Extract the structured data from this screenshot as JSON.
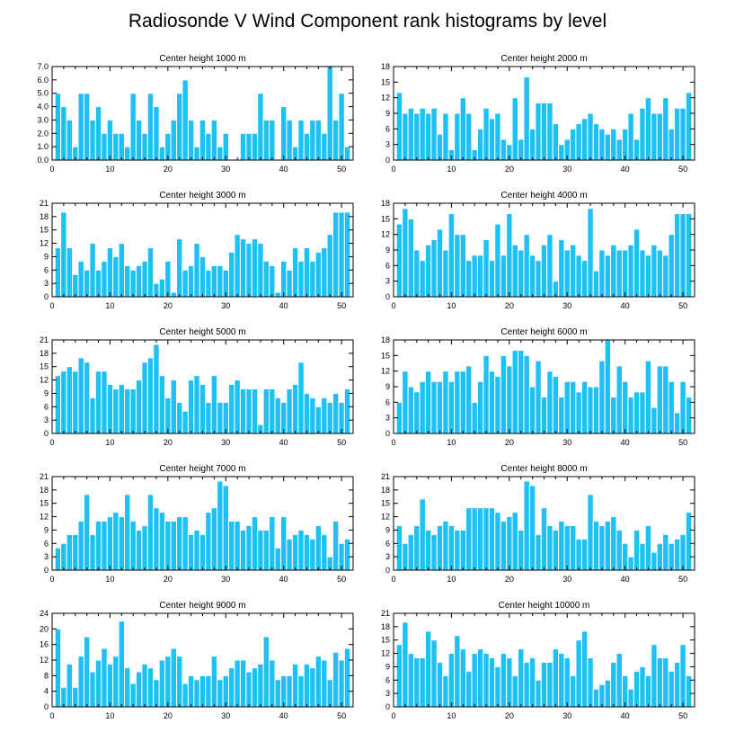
{
  "figure": {
    "title": "Radiosonde V Wind Component rank histograms by level"
  },
  "colors": {
    "bar": "#1ec1f4",
    "bar_edge": "#ffffff",
    "axis": "#000000"
  },
  "chart_data": [
    {
      "type": "bar",
      "title": "Center height 1000 m",
      "xlim": [
        0,
        52
      ],
      "ylim": [
        0,
        7
      ],
      "xticks": [
        0,
        10,
        20,
        30,
        40,
        50
      ],
      "yticks": [
        "0.0",
        "1.0",
        "2.0",
        "3.0",
        "4.0",
        "5.0",
        "6.0",
        "7.0"
      ],
      "x": [
        1,
        2,
        3,
        4,
        5,
        6,
        7,
        8,
        9,
        10,
        11,
        12,
        13,
        14,
        15,
        16,
        17,
        18,
        19,
        20,
        21,
        22,
        23,
        24,
        25,
        26,
        27,
        28,
        29,
        30,
        31,
        32,
        33,
        34,
        35,
        36,
        37,
        38,
        39,
        40,
        41,
        42,
        43,
        44,
        45,
        46,
        47,
        48,
        49,
        50,
        51
      ],
      "values": [
        5,
        4,
        3,
        1,
        5,
        5,
        3,
        4,
        2,
        3,
        2,
        2,
        1,
        5,
        3,
        2,
        5,
        4,
        1,
        2,
        3,
        5,
        6,
        3,
        1,
        3,
        2,
        3,
        1,
        2,
        0,
        0,
        2,
        2,
        2,
        5,
        3,
        3,
        0,
        4,
        3,
        1,
        3,
        2,
        3,
        3,
        2,
        7,
        3,
        5,
        1
      ]
    },
    {
      "type": "bar",
      "title": "Center height 2000 m",
      "xlim": [
        0,
        52
      ],
      "ylim": [
        0,
        18
      ],
      "xticks": [
        0,
        10,
        20,
        30,
        40,
        50
      ],
      "yticks": [
        "0",
        "3",
        "6",
        "9",
        "12",
        "15",
        "18"
      ],
      "x": [
        1,
        2,
        3,
        4,
        5,
        6,
        7,
        8,
        9,
        10,
        11,
        12,
        13,
        14,
        15,
        16,
        17,
        18,
        19,
        20,
        21,
        22,
        23,
        24,
        25,
        26,
        27,
        28,
        29,
        30,
        31,
        32,
        33,
        34,
        35,
        36,
        37,
        38,
        39,
        40,
        41,
        42,
        43,
        44,
        45,
        46,
        47,
        48,
        49,
        50,
        51
      ],
      "values": [
        13,
        9,
        10,
        9,
        10,
        9,
        10,
        5,
        9,
        2,
        9,
        12,
        9,
        2,
        6,
        10,
        8,
        9,
        4,
        3,
        12,
        4,
        16,
        6,
        11,
        11,
        11,
        7,
        3,
        4,
        6,
        7,
        8,
        9,
        7,
        6,
        5,
        6,
        4,
        6,
        9,
        4,
        10,
        12,
        9,
        9,
        12,
        6,
        10,
        10,
        13
      ]
    },
    {
      "type": "bar",
      "title": "Center height 3000 m",
      "xlim": [
        0,
        52
      ],
      "ylim": [
        0,
        21
      ],
      "xticks": [
        0,
        10,
        20,
        30,
        40,
        50
      ],
      "yticks": [
        "0",
        "3",
        "6",
        "9",
        "12",
        "15",
        "18",
        "21"
      ],
      "x": [
        1,
        2,
        3,
        4,
        5,
        6,
        7,
        8,
        9,
        10,
        11,
        12,
        13,
        14,
        15,
        16,
        17,
        18,
        19,
        20,
        21,
        22,
        23,
        24,
        25,
        26,
        27,
        28,
        29,
        30,
        31,
        32,
        33,
        34,
        35,
        36,
        37,
        38,
        39,
        40,
        41,
        42,
        43,
        44,
        45,
        46,
        47,
        48,
        49,
        50,
        51
      ],
      "values": [
        11,
        19,
        11,
        5,
        8,
        6,
        12,
        6,
        8,
        11,
        9,
        12,
        7,
        6,
        7,
        8,
        11,
        3,
        4,
        8,
        1,
        13,
        6,
        7,
        12,
        9,
        6,
        7,
        7,
        6,
        10,
        14,
        13,
        12,
        13,
        12,
        8,
        7,
        1,
        8,
        6,
        11,
        8,
        11,
        8,
        10,
        11,
        14,
        19,
        19,
        19
      ]
    },
    {
      "type": "bar",
      "title": "Center height 4000 m",
      "xlim": [
        0,
        52
      ],
      "ylim": [
        0,
        18
      ],
      "xticks": [
        0,
        10,
        20,
        30,
        40,
        50
      ],
      "yticks": [
        "0",
        "3",
        "6",
        "9",
        "12",
        "15",
        "18"
      ],
      "x": [
        1,
        2,
        3,
        4,
        5,
        6,
        7,
        8,
        9,
        10,
        11,
        12,
        13,
        14,
        15,
        16,
        17,
        18,
        19,
        20,
        21,
        22,
        23,
        24,
        25,
        26,
        27,
        28,
        29,
        30,
        31,
        32,
        33,
        34,
        35,
        36,
        37,
        38,
        39,
        40,
        41,
        42,
        43,
        44,
        45,
        46,
        47,
        48,
        49,
        50,
        51
      ],
      "values": [
        14,
        17,
        15,
        9,
        7,
        10,
        11,
        13,
        9,
        16,
        12,
        12,
        7,
        8,
        8,
        11,
        7,
        14,
        8,
        16,
        10,
        9,
        12,
        8,
        7,
        10,
        12,
        3,
        11,
        9,
        10,
        8,
        7,
        17,
        5,
        9,
        8,
        10,
        9,
        9,
        10,
        13,
        9,
        8,
        10,
        9,
        8,
        12,
        16,
        16,
        16
      ]
    },
    {
      "type": "bar",
      "title": "Center height 5000 m",
      "xlim": [
        0,
        52
      ],
      "ylim": [
        0,
        21
      ],
      "xticks": [
        0,
        10,
        20,
        30,
        40,
        50
      ],
      "yticks": [
        "0",
        "3",
        "6",
        "9",
        "12",
        "15",
        "18",
        "21"
      ],
      "x": [
        1,
        2,
        3,
        4,
        5,
        6,
        7,
        8,
        9,
        10,
        11,
        12,
        13,
        14,
        15,
        16,
        17,
        18,
        19,
        20,
        21,
        22,
        23,
        24,
        25,
        26,
        27,
        28,
        29,
        30,
        31,
        32,
        33,
        34,
        35,
        36,
        37,
        38,
        39,
        40,
        41,
        42,
        43,
        44,
        45,
        46,
        47,
        48,
        49,
        50,
        51
      ],
      "values": [
        13,
        14,
        15,
        14,
        17,
        16,
        8,
        14,
        14,
        11,
        10,
        11,
        10,
        10,
        12,
        16,
        17,
        20,
        13,
        8,
        12,
        7,
        5,
        12,
        13,
        11,
        7,
        13,
        7,
        7,
        11,
        12,
        10,
        10,
        10,
        2,
        10,
        10,
        8,
        7,
        10,
        11,
        16,
        9,
        8,
        6,
        8,
        7,
        9,
        7,
        10
      ]
    },
    {
      "type": "bar",
      "title": "Center height 6000 m",
      "xlim": [
        0,
        52
      ],
      "ylim": [
        0,
        18
      ],
      "xticks": [
        0,
        10,
        20,
        30,
        40,
        50
      ],
      "yticks": [
        "0",
        "3",
        "6",
        "9",
        "12",
        "15",
        "18"
      ],
      "x": [
        1,
        2,
        3,
        4,
        5,
        6,
        7,
        8,
        9,
        10,
        11,
        12,
        13,
        14,
        15,
        16,
        17,
        18,
        19,
        20,
        21,
        22,
        23,
        24,
        25,
        26,
        27,
        28,
        29,
        30,
        31,
        32,
        33,
        34,
        35,
        36,
        37,
        38,
        39,
        40,
        41,
        42,
        43,
        44,
        45,
        46,
        47,
        48,
        49,
        50,
        51
      ],
      "values": [
        6,
        12,
        9,
        8,
        10,
        12,
        10,
        10,
        12,
        10,
        12,
        12,
        13,
        6,
        10,
        15,
        12,
        11,
        15,
        13,
        16,
        16,
        15,
        9,
        14,
        7,
        12,
        11,
        7,
        10,
        10,
        8,
        10,
        9,
        9,
        14,
        18,
        7,
        13,
        10,
        7,
        8,
        8,
        14,
        5,
        13,
        13,
        10,
        4,
        10,
        7
      ]
    },
    {
      "type": "bar",
      "title": "Center height 7000 m",
      "xlim": [
        0,
        52
      ],
      "ylim": [
        0,
        21
      ],
      "xticks": [
        0,
        10,
        20,
        30,
        40,
        50
      ],
      "yticks": [
        "0",
        "3",
        "6",
        "9",
        "12",
        "15",
        "18",
        "21"
      ],
      "x": [
        1,
        2,
        3,
        4,
        5,
        6,
        7,
        8,
        9,
        10,
        11,
        12,
        13,
        14,
        15,
        16,
        17,
        18,
        19,
        20,
        21,
        22,
        23,
        24,
        25,
        26,
        27,
        28,
        29,
        30,
        31,
        32,
        33,
        34,
        35,
        36,
        37,
        38,
        39,
        40,
        41,
        42,
        43,
        44,
        45,
        46,
        47,
        48,
        49,
        50,
        51
      ],
      "values": [
        5,
        6,
        8,
        8,
        11,
        17,
        8,
        11,
        11,
        12,
        13,
        12,
        17,
        11,
        9,
        10,
        17,
        14,
        13,
        11,
        11,
        12,
        12,
        8,
        9,
        8,
        13,
        14,
        20,
        19,
        11,
        11,
        9,
        10,
        12,
        9,
        9,
        12,
        5,
        12,
        7,
        8,
        9,
        8,
        7,
        10,
        8,
        3,
        11,
        6,
        7
      ]
    },
    {
      "type": "bar",
      "title": "Center height 8000 m",
      "xlim": [
        0,
        52
      ],
      "ylim": [
        0,
        21
      ],
      "xticks": [
        0,
        10,
        20,
        30,
        40,
        50
      ],
      "yticks": [
        "0",
        "3",
        "6",
        "9",
        "12",
        "15",
        "18",
        "21"
      ],
      "x": [
        1,
        2,
        3,
        4,
        5,
        6,
        7,
        8,
        9,
        10,
        11,
        12,
        13,
        14,
        15,
        16,
        17,
        18,
        19,
        20,
        21,
        22,
        23,
        24,
        25,
        26,
        27,
        28,
        29,
        30,
        31,
        32,
        33,
        34,
        35,
        36,
        37,
        38,
        39,
        40,
        41,
        42,
        43,
        44,
        45,
        46,
        47,
        48,
        49,
        50,
        51
      ],
      "values": [
        10,
        6,
        8,
        10,
        16,
        9,
        8,
        10,
        11,
        10,
        9,
        9,
        14,
        14,
        14,
        14,
        14,
        13,
        11,
        12,
        13,
        9,
        20,
        19,
        8,
        14,
        10,
        9,
        11,
        10,
        10,
        7,
        7,
        17,
        11,
        10,
        11,
        12,
        9,
        6,
        3,
        9,
        6,
        10,
        4,
        6,
        8,
        6,
        7,
        8,
        13
      ]
    },
    {
      "type": "bar",
      "title": "Center height 9000 m",
      "xlim": [
        0,
        52
      ],
      "ylim": [
        0,
        24
      ],
      "xticks": [
        0,
        10,
        20,
        30,
        40,
        50
      ],
      "yticks": [
        "0",
        "4",
        "8",
        "12",
        "16",
        "20",
        "24"
      ],
      "x": [
        1,
        2,
        3,
        4,
        5,
        6,
        7,
        8,
        9,
        10,
        11,
        12,
        13,
        14,
        15,
        16,
        17,
        18,
        19,
        20,
        21,
        22,
        23,
        24,
        25,
        26,
        27,
        28,
        29,
        30,
        31,
        32,
        33,
        34,
        35,
        36,
        37,
        38,
        39,
        40,
        41,
        42,
        43,
        44,
        45,
        46,
        47,
        48,
        49,
        50,
        51
      ],
      "values": [
        20,
        5,
        11,
        5,
        13,
        18,
        9,
        12,
        15,
        11,
        13,
        22,
        10,
        6,
        9,
        11,
        10,
        7,
        12,
        13,
        15,
        13,
        6,
        8,
        7,
        8,
        8,
        13,
        7,
        8,
        10,
        12,
        12,
        9,
        10,
        11,
        18,
        12,
        7,
        8,
        8,
        11,
        8,
        11,
        10,
        13,
        12,
        7,
        14,
        12,
        15
      ]
    },
    {
      "type": "bar",
      "title": "Center height 10000 m",
      "xlim": [
        0,
        52
      ],
      "ylim": [
        0,
        21
      ],
      "xticks": [
        0,
        10,
        20,
        30,
        40,
        50
      ],
      "yticks": [
        "0",
        "3",
        "6",
        "9",
        "12",
        "15",
        "18",
        "21"
      ],
      "x": [
        1,
        2,
        3,
        4,
        5,
        6,
        7,
        8,
        9,
        10,
        11,
        12,
        13,
        14,
        15,
        16,
        17,
        18,
        19,
        20,
        21,
        22,
        23,
        24,
        25,
        26,
        27,
        28,
        29,
        30,
        31,
        32,
        33,
        34,
        35,
        36,
        37,
        38,
        39,
        40,
        41,
        42,
        43,
        44,
        45,
        46,
        47,
        48,
        49,
        50,
        51
      ],
      "values": [
        14,
        19,
        12,
        11,
        11,
        17,
        15,
        10,
        7,
        12,
        16,
        13,
        8,
        12,
        13,
        12,
        11,
        9,
        12,
        11,
        7,
        13,
        10,
        11,
        6,
        10,
        10,
        13,
        12,
        11,
        7,
        15,
        17,
        11,
        4,
        5,
        6,
        10,
        12,
        7,
        4,
        8,
        9,
        7,
        14,
        11,
        11,
        8,
        10,
        14,
        7
      ]
    }
  ]
}
